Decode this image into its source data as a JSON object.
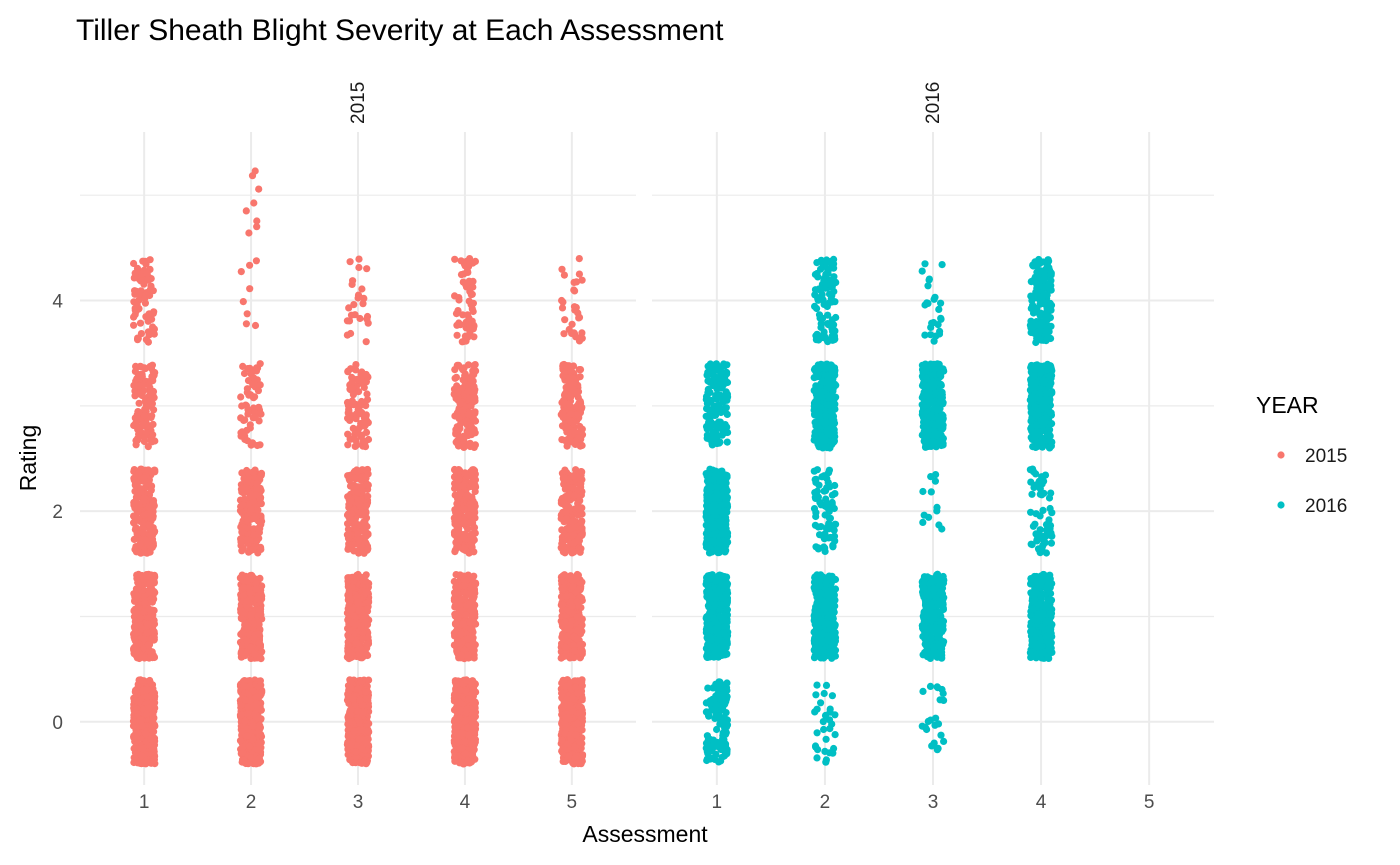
{
  "chart_data": {
    "type": "scatter",
    "title": "Tiller Sheath Blight Severity at Each Assessment",
    "xlabel": "Assessment",
    "ylabel": "Rating",
    "x_ticks": [
      "1",
      "2",
      "3",
      "4",
      "5"
    ],
    "y_ticks": [
      "0",
      "2",
      "4"
    ],
    "ylim": [
      -0.6,
      5.6
    ],
    "grid": true,
    "jitter": {
      "width": 0.1,
      "height": 0.4
    },
    "legend": {
      "title": "YEAR",
      "position": "right",
      "entries": [
        {
          "label": "2015",
          "color": "#F8766D"
        },
        {
          "label": "2016",
          "color": "#00BFC4"
        }
      ]
    },
    "facets": [
      {
        "label": "2015",
        "color": "#F8766D",
        "groups": [
          {
            "assessment": 1,
            "rating_counts": {
              "0": 400,
              "1": 300,
              "2": 200,
              "3": 120,
              "4": 70
            }
          },
          {
            "assessment": 2,
            "rating_counts": {
              "0": 400,
              "1": 300,
              "2": 180,
              "3": 60,
              "4": 8,
              "5": 8
            }
          },
          {
            "assessment": 3,
            "rating_counts": {
              "0": 400,
              "1": 300,
              "2": 200,
              "3": 90,
              "4": 25
            }
          },
          {
            "assessment": 4,
            "rating_counts": {
              "0": 400,
              "1": 300,
              "2": 220,
              "3": 140,
              "4": 60
            }
          },
          {
            "assessment": 5,
            "rating_counts": {
              "0": 400,
              "1": 300,
              "2": 200,
              "3": 150,
              "4": 30
            }
          }
        ]
      },
      {
        "label": "2016",
        "color": "#00BFC4",
        "groups": [
          {
            "assessment": 1,
            "rating_counts": {
              "0": 120,
              "1": 300,
              "2": 300,
              "3": 140
            }
          },
          {
            "assessment": 2,
            "rating_counts": {
              "0": 30,
              "1": 300,
              "2": 70,
              "3": 300,
              "4": 90
            }
          },
          {
            "assessment": 3,
            "rating_counts": {
              "0": 22,
              "1": 300,
              "2": 12,
              "3": 300,
              "4": 25
            }
          },
          {
            "assessment": 4,
            "rating_counts": {
              "1": 300,
              "2": 60,
              "3": 300,
              "4": 130
            }
          },
          {
            "assessment": 5,
            "rating_counts": {}
          }
        ]
      }
    ]
  }
}
